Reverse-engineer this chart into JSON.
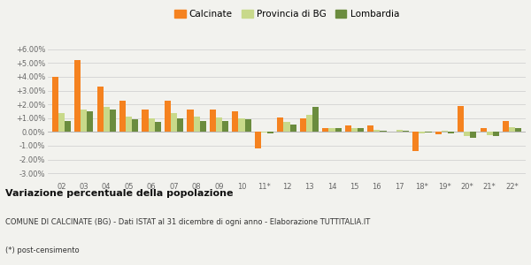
{
  "years": [
    "02",
    "03",
    "04",
    "05",
    "06",
    "07",
    "08",
    "09",
    "10",
    "11*",
    "12",
    "13",
    "14",
    "15",
    "16",
    "17",
    "18*",
    "19*",
    "20*",
    "21*",
    "22*"
  ],
  "calcinate": [
    4.0,
    5.2,
    3.3,
    2.25,
    1.6,
    2.25,
    1.6,
    1.6,
    1.5,
    -1.2,
    1.05,
    1.0,
    0.3,
    0.45,
    0.5,
    0.05,
    -1.4,
    -0.15,
    1.9,
    0.25,
    0.8
  ],
  "provincia_bg": [
    1.35,
    1.6,
    1.85,
    1.1,
    1.0,
    1.4,
    1.1,
    1.05,
    1.0,
    -0.05,
    0.7,
    1.25,
    0.3,
    0.3,
    0.15,
    0.15,
    -0.1,
    0.1,
    -0.3,
    -0.25,
    0.35
  ],
  "lombardia": [
    0.8,
    1.5,
    1.6,
    0.9,
    0.7,
    1.0,
    0.8,
    0.8,
    0.9,
    -0.1,
    0.55,
    1.85,
    0.25,
    0.25,
    0.1,
    0.1,
    -0.05,
    -0.1,
    -0.4,
    -0.3,
    0.3
  ],
  "color_calcinate": "#f5821f",
  "color_provincia": "#c8d98a",
  "color_lombardia": "#6b8c3e",
  "bg_color": "#f2f2ee",
  "title_bold": "Variazione percentuale della popolazione",
  "subtitle": "COMUNE DI CALCINATE (BG) - Dati ISTAT al 31 dicembre di ogni anno - Elaborazione TUTTITALIA.IT",
  "footnote": "(*) post-censimento",
  "ylim": [
    -3.5,
    6.5
  ],
  "yticks": [
    -3.0,
    -2.0,
    -1.0,
    0.0,
    1.0,
    2.0,
    3.0,
    4.0,
    5.0,
    6.0
  ],
  "ytick_labels": [
    "-3.00%",
    "-2.00%",
    "-1.00%",
    "0.00%",
    "+1.00%",
    "+2.00%",
    "+3.00%",
    "+4.00%",
    "+5.00%",
    "+6.00%"
  ]
}
